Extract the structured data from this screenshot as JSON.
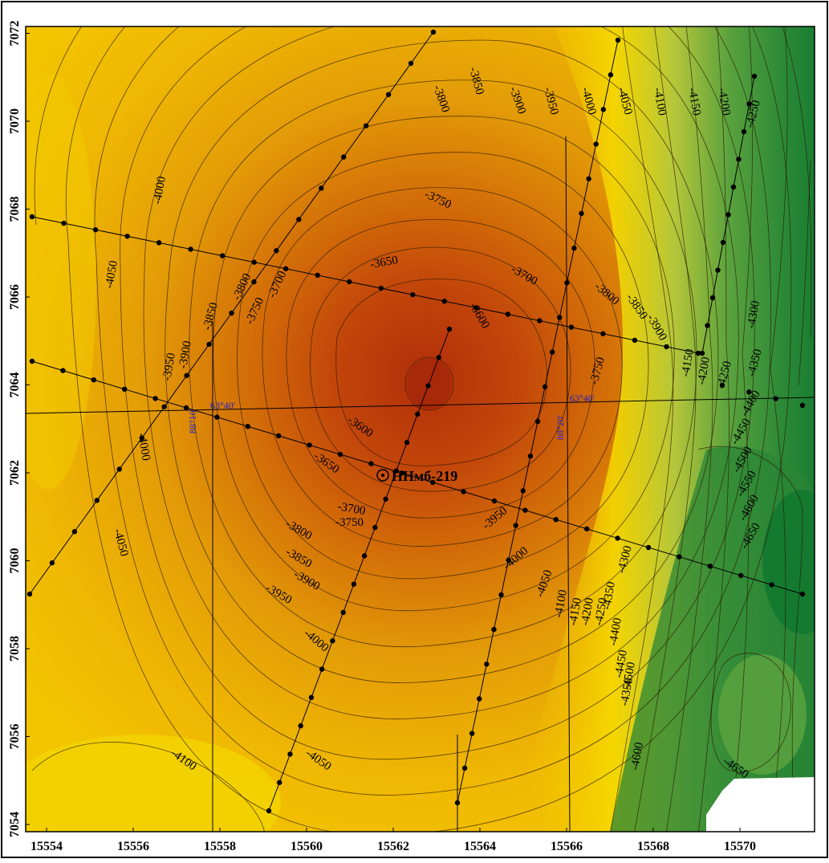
{
  "map": {
    "x_ticks": [
      "15554",
      "15556",
      "15558",
      "15560",
      "15562",
      "15564",
      "15566",
      "15568",
      "15570"
    ],
    "y_ticks": [
      "7054",
      "7056",
      "7058",
      "7060",
      "7062",
      "7064",
      "7066",
      "7068",
      "7070",
      "7072"
    ],
    "well_label": "ННмб-219",
    "colors": {
      "shallow": "#b7300a",
      "mid": "#e39a07",
      "pale": "#f6d800",
      "deep": "#137a30"
    },
    "grid_labels": [
      {
        "id": "lat-left",
        "text": "63°40'"
      },
      {
        "id": "lat-right",
        "text": "63°40'"
      },
      {
        "id": "lon-left",
        "text": "88°10'"
      },
      {
        "id": "lon-right",
        "text": "88°20'"
      }
    ],
    "contour_labels": [
      "-3600",
      "-3650",
      "-3700",
      "-3750",
      "-3800",
      "-3850",
      "-3900",
      "-3950",
      "-4000",
      "-4050",
      "-4100",
      "-4150",
      "-4200",
      "-4250",
      "-4300",
      "-4350",
      "-4400",
      "-4450",
      "-4500",
      "-4550",
      "-4600",
      "-4650"
    ]
  }
}
